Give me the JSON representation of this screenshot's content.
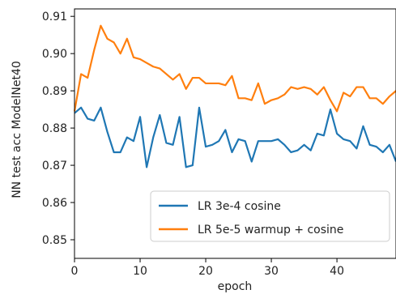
{
  "chart_data": {
    "type": "line",
    "title": "",
    "xlabel": "epoch",
    "ylabel": "NN test acc ModelNet40",
    "xlim": [
      0,
      49
    ],
    "ylim": [
      0.845,
      0.912
    ],
    "xticks": [
      0,
      10,
      20,
      30,
      40
    ],
    "yticks": [
      0.85,
      0.86,
      0.87,
      0.88,
      0.89,
      0.9,
      0.91
    ],
    "ytick_labels": [
      "0.85",
      "0.86",
      "0.87",
      "0.88",
      "0.89",
      "0.90",
      "0.91"
    ],
    "grid": false,
    "legend_position": "lower-right",
    "x": [
      0,
      1,
      2,
      3,
      4,
      5,
      6,
      7,
      8,
      9,
      10,
      11,
      12,
      13,
      14,
      15,
      16,
      17,
      18,
      19,
      20,
      21,
      22,
      23,
      24,
      25,
      26,
      27,
      28,
      29,
      30,
      31,
      32,
      33,
      34,
      35,
      36,
      37,
      38,
      39,
      40,
      41,
      42,
      43,
      44,
      45,
      46,
      47,
      48,
      49
    ],
    "series": [
      {
        "name": "LR 3e-4 cosine",
        "color": "#1f77b4",
        "values": [
          0.884,
          0.8855,
          0.8825,
          0.882,
          0.8855,
          0.879,
          0.8735,
          0.8735,
          0.8775,
          0.8765,
          0.883,
          0.8695,
          0.8775,
          0.8835,
          0.876,
          0.8755,
          0.883,
          0.8695,
          0.87,
          0.8855,
          0.875,
          0.8755,
          0.8765,
          0.8795,
          0.8735,
          0.877,
          0.8765,
          0.871,
          0.8765,
          0.8765,
          0.8765,
          0.877,
          0.8755,
          0.8735,
          0.874,
          0.8755,
          0.874,
          0.8785,
          0.878,
          0.885,
          0.8785,
          0.877,
          0.8765,
          0.8745,
          0.8805,
          0.8755,
          0.875,
          0.8735,
          0.8755,
          0.871
        ]
      },
      {
        "name": "LR 5e-5 warmup + cosine",
        "color": "#ff7f0e",
        "values": [
          0.8845,
          0.8945,
          0.8935,
          0.901,
          0.9075,
          0.904,
          0.903,
          0.9,
          0.904,
          0.899,
          0.8985,
          0.8975,
          0.8965,
          0.896,
          0.8945,
          0.893,
          0.8945,
          0.8905,
          0.8935,
          0.8935,
          0.892,
          0.892,
          0.892,
          0.8915,
          0.894,
          0.888,
          0.888,
          0.8875,
          0.892,
          0.8865,
          0.8875,
          0.888,
          0.889,
          0.891,
          0.8905,
          0.891,
          0.8905,
          0.889,
          0.891,
          0.8875,
          0.8845,
          0.8895,
          0.8885,
          0.891,
          0.891,
          0.888,
          0.888,
          0.8865,
          0.8885,
          0.89
        ]
      }
    ]
  }
}
